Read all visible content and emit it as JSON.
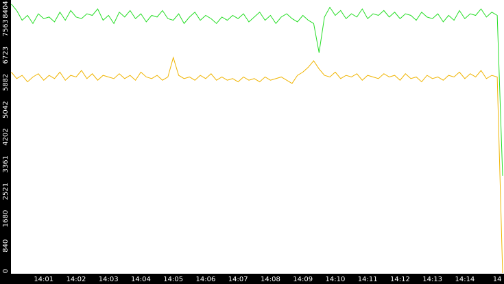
{
  "chart_data": {
    "type": "line",
    "categories": [
      null,
      null,
      null,
      null,
      null,
      null,
      "14:01",
      null,
      null,
      null,
      null,
      null,
      "14:02",
      null,
      null,
      null,
      null,
      null,
      "14:03",
      null,
      null,
      null,
      null,
      null,
      "14:04",
      null,
      null,
      null,
      null,
      null,
      "14:05",
      null,
      null,
      null,
      null,
      null,
      "14:06",
      null,
      null,
      null,
      null,
      null,
      "14:07",
      null,
      null,
      null,
      null,
      null,
      "14:08",
      null,
      null,
      null,
      null,
      null,
      "14:09",
      null,
      null,
      null,
      null,
      null,
      "14:10",
      null,
      null,
      null,
      null,
      null,
      "14:11",
      null,
      null,
      null,
      null,
      null,
      "14:12",
      null,
      null,
      null,
      null,
      null,
      "14:13",
      null,
      null,
      null,
      null,
      null,
      "14:14",
      null,
      null,
      null,
      null,
      null,
      "14",
      null
    ],
    "series": [
      {
        "color": "#22dd22",
        "values": [
          8300,
          8100,
          7800,
          7950,
          7700,
          8000,
          7850,
          7900,
          7750,
          8050,
          7800,
          8100,
          7900,
          7850,
          8000,
          7950,
          8150,
          7800,
          7950,
          7700,
          8050,
          7900,
          8100,
          7850,
          8000,
          7750,
          7950,
          7900,
          8100,
          7850,
          7800,
          8000,
          7700,
          7900,
          8050,
          7800,
          7950,
          7850,
          7700,
          7900,
          7800,
          7950,
          7850,
          8000,
          7750,
          7900,
          8050,
          7800,
          7950,
          7700,
          7900,
          8000,
          7850,
          7750,
          7950,
          7800,
          7700,
          6800,
          7900,
          8200,
          7950,
          8100,
          7850,
          8000,
          7900,
          8150,
          7850,
          8000,
          7950,
          8100,
          7900,
          8050,
          7850,
          8000,
          7950,
          7800,
          8050,
          7900,
          7850,
          8000,
          7750,
          7950,
          7800,
          8100,
          7850,
          8000,
          7950,
          8150,
          7900,
          8050,
          7950,
          3000
        ]
      },
      {
        "color": "#f0b400",
        "values": [
          6200,
          6000,
          6100,
          5900,
          6050,
          6150,
          5950,
          6100,
          6000,
          6200,
          5950,
          6100,
          6050,
          6250,
          6000,
          6150,
          5950,
          6100,
          6050,
          6000,
          6150,
          6000,
          6100,
          5950,
          6200,
          6050,
          6000,
          6100,
          5950,
          6050,
          6650,
          6100,
          6000,
          6050,
          5950,
          6100,
          6000,
          6150,
          5950,
          6050,
          5950,
          6000,
          5900,
          6050,
          5950,
          6000,
          5900,
          6050,
          5950,
          6000,
          6050,
          5950,
          5850,
          6100,
          6200,
          6350,
          6550,
          6300,
          6100,
          6050,
          6200,
          6000,
          6100,
          6050,
          6150,
          5950,
          6100,
          6050,
          6000,
          6150,
          6050,
          6100,
          5950,
          6150,
          6000,
          6050,
          5900,
          6100,
          6000,
          6050,
          5950,
          6100,
          6050,
          6200,
          6000,
          6150,
          6050,
          6250,
          6000,
          6100,
          6050,
          0
        ]
      }
    ],
    "ylim": [
      0,
      8404
    ],
    "yticks": [
      0,
      840,
      1680,
      2521,
      3361,
      4202,
      5042,
      5882,
      6723,
      7563,
      8404
    ],
    "grid": false
  }
}
